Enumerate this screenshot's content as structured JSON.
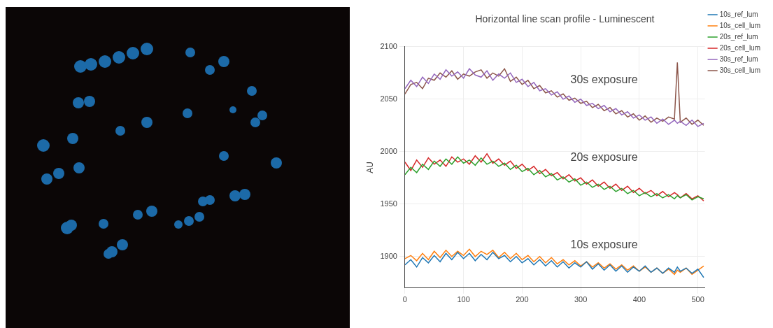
{
  "chart_data": {
    "type": "line",
    "title": "Horizontal line scan profile - Luminescent",
    "y_label": "AU",
    "x": [
      0,
      10,
      20,
      30,
      40,
      50,
      60,
      70,
      80,
      90,
      100,
      110,
      120,
      130,
      140,
      150,
      160,
      170,
      180,
      190,
      200,
      210,
      220,
      230,
      240,
      250,
      260,
      270,
      280,
      290,
      300,
      310,
      320,
      330,
      340,
      350,
      360,
      370,
      380,
      390,
      400,
      410,
      420,
      430,
      440,
      450,
      460,
      465,
      470,
      480,
      490,
      500,
      510
    ],
    "series": [
      {
        "name": "10s_ref_lum",
        "color": "#1f77b4",
        "values": [
          1892,
          1897,
          1890,
          1899,
          1894,
          1901,
          1895,
          1903,
          1897,
          1904,
          1898,
          1903,
          1896,
          1902,
          1897,
          1904,
          1898,
          1901,
          1895,
          1900,
          1894,
          1898,
          1892,
          1897,
          1891,
          1896,
          1890,
          1895,
          1889,
          1894,
          1890,
          1895,
          1888,
          1893,
          1887,
          1892,
          1886,
          1891,
          1885,
          1890,
          1886,
          1891,
          1885,
          1889,
          1884,
          1889,
          1885,
          1890,
          1886,
          1889,
          1884,
          1888,
          1880
        ]
      },
      {
        "name": "10s_cell_lum",
        "color": "#ff7f0e",
        "values": [
          1898,
          1901,
          1896,
          1903,
          1897,
          1905,
          1899,
          1906,
          1900,
          1905,
          1901,
          1907,
          1900,
          1905,
          1902,
          1906,
          1899,
          1904,
          1898,
          1903,
          1897,
          1901,
          1895,
          1900,
          1894,
          1899,
          1893,
          1897,
          1892,
          1896,
          1891,
          1895,
          1890,
          1894,
          1889,
          1893,
          1888,
          1892,
          1887,
          1891,
          1886,
          1890,
          1885,
          1889,
          1884,
          1888,
          1883,
          1887,
          1885,
          1889,
          1883,
          1887,
          1891
        ]
      },
      {
        "name": "20s_ref_lum",
        "color": "#2ca02c",
        "values": [
          1978,
          1985,
          1980,
          1988,
          1983,
          1991,
          1986,
          1993,
          1988,
          1995,
          1989,
          1992,
          1987,
          1994,
          1988,
          1991,
          1986,
          1989,
          1983,
          1987,
          1981,
          1984,
          1978,
          1982,
          1976,
          1979,
          1973,
          1976,
          1971,
          1974,
          1968,
          1971,
          1966,
          1969,
          1964,
          1967,
          1962,
          1965,
          1960,
          1963,
          1958,
          1961,
          1957,
          1960,
          1956,
          1959,
          1955,
          1958,
          1956,
          1959,
          1954,
          1957,
          1955
        ]
      },
      {
        "name": "20s_cell_lum",
        "color": "#d62728",
        "values": [
          1990,
          1982,
          1992,
          1985,
          1994,
          1988,
          1992,
          1986,
          1995,
          1990,
          1993,
          1988,
          1996,
          1990,
          1998,
          1989,
          1993,
          1987,
          1991,
          1984,
          1988,
          1982,
          1986,
          1979,
          1983,
          1977,
          1980,
          1974,
          1978,
          1972,
          1975,
          1969,
          1973,
          1967,
          1971,
          1965,
          1969,
          1963,
          1967,
          1961,
          1965,
          1960,
          1963,
          1958,
          1962,
          1957,
          1961,
          1959,
          1956,
          1960,
          1955,
          1958,
          1953
        ]
      },
      {
        "name": "30s_ref_lum",
        "color": "#9467bd",
        "values": [
          2060,
          2068,
          2062,
          2071,
          2065,
          2074,
          2069,
          2078,
          2072,
          2076,
          2070,
          2079,
          2073,
          2071,
          2077,
          2068,
          2074,
          2070,
          2075,
          2066,
          2069,
          2062,
          2066,
          2058,
          2060,
          2054,
          2057,
          2050,
          2053,
          2047,
          2050,
          2044,
          2046,
          2041,
          2044,
          2038,
          2041,
          2035,
          2038,
          2032,
          2035,
          2030,
          2033,
          2027,
          2031,
          2026,
          2030,
          2027,
          2029,
          2025,
          2030,
          2024,
          2027
        ]
      },
      {
        "name": "30s_cell_lum",
        "color": "#8c564b",
        "values": [
          2055,
          2064,
          2066,
          2060,
          2070,
          2068,
          2075,
          2071,
          2077,
          2069,
          2074,
          2072,
          2076,
          2078,
          2070,
          2075,
          2072,
          2079,
          2067,
          2071,
          2064,
          2068,
          2060,
          2063,
          2056,
          2058,
          2052,
          2055,
          2049,
          2051,
          2046,
          2048,
          2042,
          2045,
          2039,
          2042,
          2036,
          2039,
          2033,
          2036,
          2030,
          2034,
          2028,
          2032,
          2029,
          2033,
          2031,
          2085,
          2028,
          2032,
          2026,
          2030,
          2025
        ]
      }
    ],
    "annotations": [
      {
        "text": "30s exposure",
        "x": 340,
        "y": 2068
      },
      {
        "text": "20s exposure",
        "x": 340,
        "y": 1994
      },
      {
        "text": "10s exposure",
        "x": 340,
        "y": 1911
      }
    ],
    "xlim": [
      0,
      512
    ],
    "xticks": [
      0,
      100,
      200,
      300,
      400,
      500
    ],
    "ylim": [
      1870,
      2100
    ],
    "yticks": [
      1900,
      1950,
      2000,
      2050,
      2100
    ],
    "grid": true,
    "legend": "right"
  }
}
